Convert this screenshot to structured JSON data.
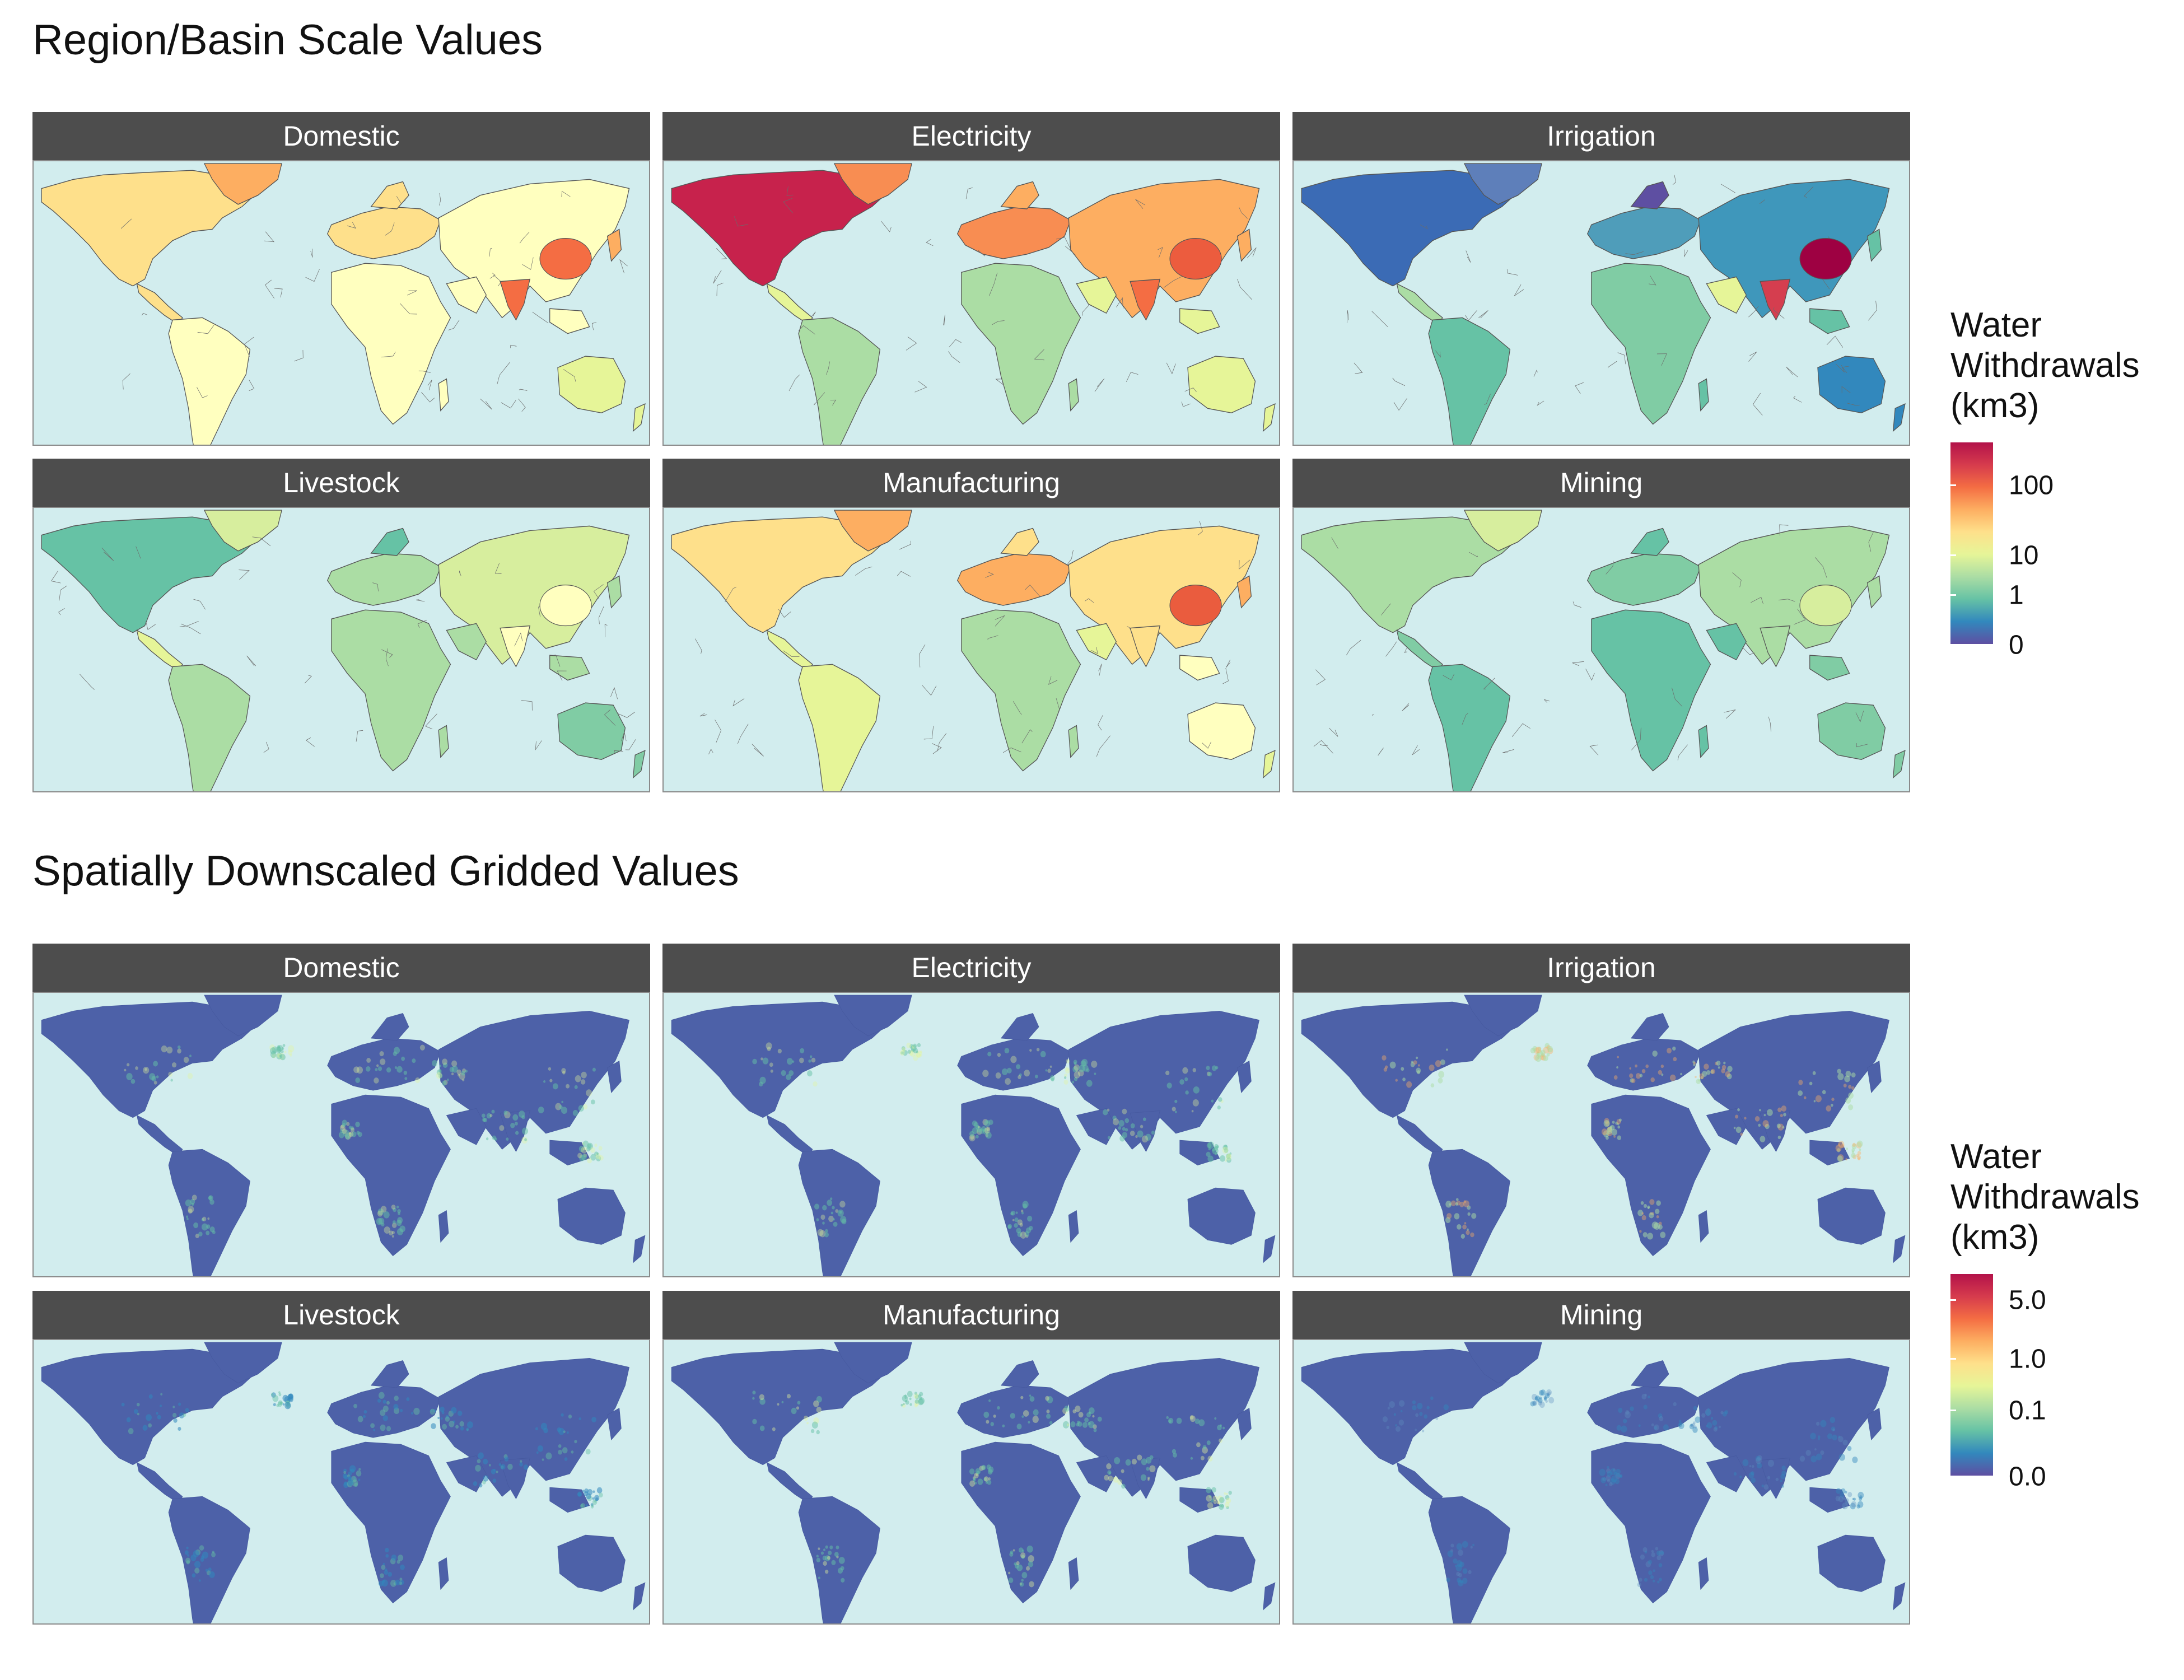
{
  "sections": [
    {
      "title": "Region/Basin Scale Values",
      "panels": [
        "Domestic",
        "Electricity",
        "Irrigation",
        "Livestock",
        "Manufacturing",
        "Mining"
      ],
      "legend": {
        "title_lines": [
          "Water",
          "Withdrawals",
          "(km3)"
        ],
        "ticks": [
          "100",
          "10",
          "1",
          "0"
        ]
      }
    },
    {
      "title": "Spatially Downscaled Gridded Values",
      "panels": [
        "Domestic",
        "Electricity",
        "Irrigation",
        "Livestock",
        "Manufacturing",
        "Mining"
      ],
      "legend": {
        "title_lines": [
          "Water",
          "Withdrawals",
          "(km3)"
        ],
        "ticks": [
          "5.0",
          "1.0",
          "0.1",
          "0.0"
        ]
      }
    }
  ],
  "colors": {
    "ocean": "#d2edee",
    "strip": "#4d4d4d",
    "palette_high": "#b3124a",
    "palette_low": "#5e4fa2"
  }
}
